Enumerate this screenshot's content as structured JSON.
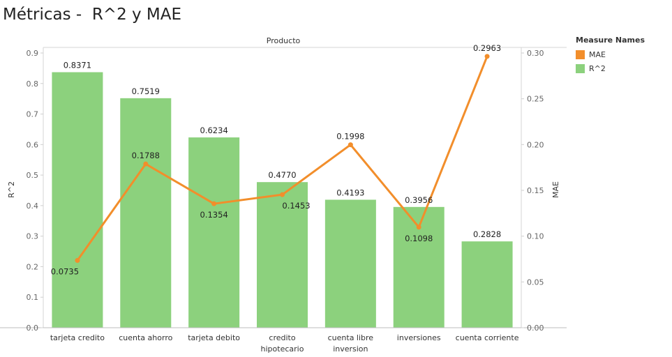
{
  "title": "Métricas -  R^2 y MAE",
  "legend": {
    "title": "Measure Names",
    "items": [
      {
        "label": "MAE",
        "color": "#f28e2b"
      },
      {
        "label": "R^2",
        "color": "#8cd17d"
      }
    ]
  },
  "chart_data": {
    "type": "bar",
    "header": "Producto",
    "categories": [
      [
        "tarjeta credito"
      ],
      [
        "cuenta ahorro"
      ],
      [
        "tarjeta debito"
      ],
      [
        "credito",
        "hipotecario"
      ],
      [
        "cuenta libre",
        "inversion"
      ],
      [
        "inversiones"
      ],
      [
        "cuenta corriente"
      ]
    ],
    "series": [
      {
        "name": "R^2",
        "type": "bar",
        "color": "#8cd17d",
        "axis": "left",
        "values": [
          0.8371,
          0.7519,
          0.6234,
          0.477,
          0.4193,
          0.3956,
          0.2828
        ],
        "labels": [
          "0.8371",
          "0.7519",
          "0.6234",
          "0.4770",
          "0.4193",
          "0.3956",
          "0.2828"
        ]
      },
      {
        "name": "MAE",
        "type": "line",
        "color": "#f28e2b",
        "axis": "right",
        "values": [
          0.0735,
          0.1788,
          0.1354,
          0.1453,
          0.1998,
          0.1098,
          0.2963
        ],
        "labels": [
          "0.0735",
          "0.1788",
          "0.1354",
          "0.1453",
          "0.1998",
          "0.1098",
          "0.2963"
        ]
      }
    ],
    "y_left": {
      "label": "R^2",
      "ylim": [
        0,
        0.9
      ],
      "ticks": [
        0.0,
        0.1,
        0.2,
        0.3,
        0.4,
        0.5,
        0.6,
        0.7,
        0.8,
        0.9
      ],
      "tick_labels": [
        "0.0",
        "0.1",
        "0.2",
        "0.3",
        "0.4",
        "0.5",
        "0.6",
        "0.7",
        "0.8",
        "0.9"
      ]
    },
    "y_right": {
      "label": "MAE",
      "ylim": [
        0,
        0.3
      ],
      "ticks": [
        0.0,
        0.05,
        0.1,
        0.15,
        0.2,
        0.25,
        0.3
      ],
      "tick_labels": [
        "0.00",
        "0.05",
        "0.10",
        "0.15",
        "0.20",
        "0.25",
        "0.30"
      ]
    },
    "grid": false,
    "legend_position": "top-right"
  }
}
